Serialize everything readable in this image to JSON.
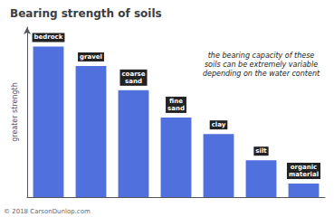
{
  "chart_data": {
    "type": "bar",
    "title": "Bearing strength of soils",
    "categories": [
      "bedrock",
      "gravel",
      "coarse\nsand",
      "fine\nsand",
      "clay",
      "silt",
      "organic\nmaterial"
    ],
    "values": [
      155,
      135,
      110,
      82,
      65,
      38,
      14
    ],
    "ylabel": "greater strength",
    "ylim": [
      0,
      175
    ],
    "grid": false,
    "tick_labels": false,
    "annotation": "the bearing capacity of these\nsoils can be extremely variable\ndepending on the water content",
    "copyright": "© 2018 CarsonDunlop.com"
  }
}
